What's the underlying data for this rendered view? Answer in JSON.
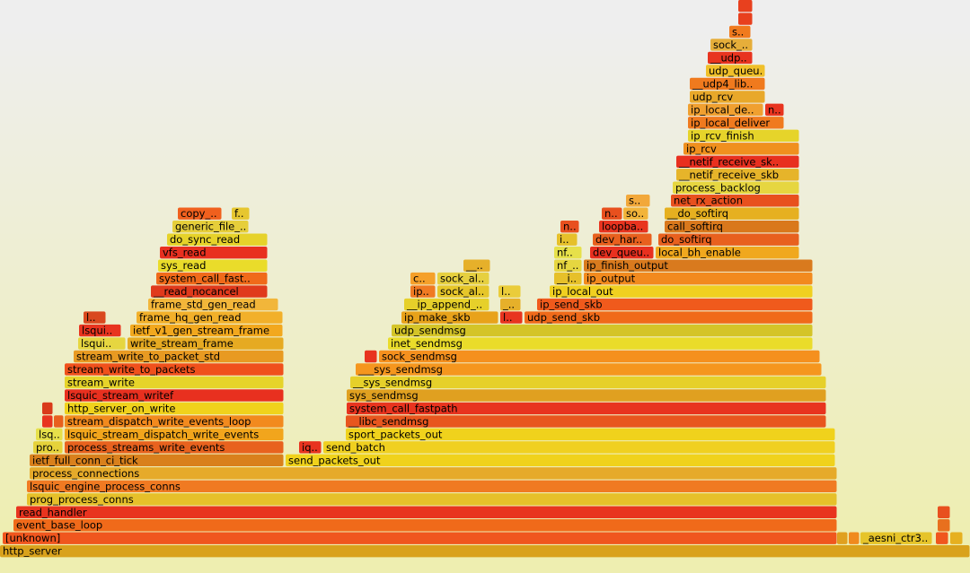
{
  "chart_data": {
    "type": "flame",
    "xlim": [
      0,
      1080
    ],
    "frames": [
      {
        "name": "http_server",
        "level": 0,
        "start": 0,
        "width": 1080,
        "color": "#d9a21c"
      },
      {
        "name": "[unknown]",
        "level": 1,
        "start": 3,
        "width": 929,
        "color": "#f0561e"
      },
      {
        "name": null,
        "level": 1,
        "start": 932,
        "width": 12,
        "color": "#e0a020"
      },
      {
        "name": null,
        "level": 1,
        "start": 945,
        "width": 12,
        "color": "#f08a1e"
      },
      {
        "name": "_aesni_ctr3..",
        "level": 1,
        "start": 958,
        "width": 80,
        "color": "#e6c42a"
      },
      {
        "name": null,
        "level": 1,
        "start": 1042,
        "width": 14,
        "color": "#f0561e"
      },
      {
        "name": null,
        "level": 1,
        "start": 1058,
        "width": 14,
        "color": "#e6b020"
      },
      {
        "name": null,
        "level": 2,
        "start": 1044,
        "width": 14,
        "color": "#e8701e"
      },
      {
        "name": null,
        "level": 3,
        "start": 1044,
        "width": 14,
        "color": "#e8501e"
      },
      {
        "name": "event_base_loop",
        "level": 2,
        "start": 15,
        "width": 917,
        "color": "#f06a1a"
      },
      {
        "name": "read_handler",
        "level": 3,
        "start": 18,
        "width": 914,
        "color": "#e8341f"
      },
      {
        "name": "prog_process_conns",
        "level": 4,
        "start": 30,
        "width": 902,
        "color": "#e6c02a"
      },
      {
        "name": "lsquic_engine_process_conns",
        "level": 5,
        "start": 30,
        "width": 902,
        "color": "#f07a22"
      },
      {
        "name": "process_connections",
        "level": 6,
        "start": 33,
        "width": 899,
        "color": "#e6aa2a"
      },
      {
        "name": "ietf_full_conn_ci_tick",
        "level": 7,
        "start": 33,
        "width": 283,
        "color": "#d9801c"
      },
      {
        "name": "send_packets_out",
        "level": 7,
        "start": 318,
        "width": 612,
        "color": "#f0d21c"
      },
      {
        "name": "pro..",
        "level": 8,
        "start": 37,
        "width": 33,
        "color": "#e6d23a"
      },
      {
        "name": "process_streams_write_events",
        "level": 8,
        "start": 72,
        "width": 244,
        "color": "#e8621e"
      },
      {
        "name": "iq..",
        "level": 8,
        "start": 333,
        "width": 25,
        "color": "#e8341f"
      },
      {
        "name": "send_batch",
        "level": 8,
        "start": 360,
        "width": 570,
        "color": "#f0d020"
      },
      {
        "name": "lsq..",
        "level": 9,
        "start": 40,
        "width": 30,
        "color": "#e6e04a"
      },
      {
        "name": "lsquic_stream_dispatch_write_events",
        "level": 9,
        "start": 72,
        "width": 244,
        "color": "#f2a51c"
      },
      {
        "name": "sport_packets_out",
        "level": 9,
        "start": 385,
        "width": 545,
        "color": "#f0d21c"
      },
      {
        "name": "stream_dispatch_write_events_loop",
        "level": 10,
        "start": 72,
        "width": 244,
        "color": "#f28a1e"
      },
      {
        "name": "__libc_sendmsg",
        "level": 10,
        "start": 385,
        "width": 535,
        "color": "#e8561e"
      },
      {
        "name": null,
        "level": 10,
        "start": 47,
        "width": 12,
        "color": "#e8341f"
      },
      {
        "name": null,
        "level": 10,
        "start": 60,
        "width": 11,
        "color": "#e8601e"
      },
      {
        "name": "http_server_on_write",
        "level": 11,
        "start": 72,
        "width": 244,
        "color": "#f0d21c"
      },
      {
        "name": "system_call_fastpath",
        "level": 11,
        "start": 386,
        "width": 534,
        "color": "#e8341f"
      },
      {
        "name": null,
        "level": 11,
        "start": 47,
        "width": 12,
        "color": "#d93a1a"
      },
      {
        "name": "lsquic_stream_writef",
        "level": 12,
        "start": 72,
        "width": 244,
        "color": "#e8301f"
      },
      {
        "name": "sys_sendmsg",
        "level": 12,
        "start": 386,
        "width": 534,
        "color": "#e0a020"
      },
      {
        "name": "stream_write",
        "level": 13,
        "start": 72,
        "width": 244,
        "color": "#e6d42a"
      },
      {
        "name": "__sys_sendmsg",
        "level": 13,
        "start": 390,
        "width": 530,
        "color": "#e6d02a"
      },
      {
        "name": "stream_write_to_packets",
        "level": 14,
        "start": 72,
        "width": 244,
        "color": "#f0501c"
      },
      {
        "name": "___sys_sendmsg",
        "level": 14,
        "start": 396,
        "width": 519,
        "color": "#f5961e"
      },
      {
        "name": "stream_write_to_packet_std",
        "level": 15,
        "start": 82,
        "width": 234,
        "color": "#e89a22"
      },
      {
        "name": "sock_sendmsg",
        "level": 15,
        "start": 422,
        "width": 491,
        "color": "#f5901e"
      },
      {
        "name": null,
        "level": 15,
        "start": 406,
        "width": 14,
        "color": "#e8341f"
      },
      {
        "name": "lsqui..",
        "level": 16,
        "start": 87,
        "width": 53,
        "color": "#e6d640"
      },
      {
        "name": "write_stream_frame",
        "level": 16,
        "start": 142,
        "width": 174,
        "color": "#e6aa22"
      },
      {
        "name": "inet_sendmsg",
        "level": 16,
        "start": 432,
        "width": 473,
        "color": "#eadc2a"
      },
      {
        "name": "lsqui..",
        "level": 17,
        "start": 88,
        "width": 47,
        "color": "#e8341f"
      },
      {
        "name": "ietf_v1_gen_stream_frame",
        "level": 17,
        "start": 145,
        "width": 170,
        "color": "#f2a81e"
      },
      {
        "name": "udp_sendmsg",
        "level": 17,
        "start": 436,
        "width": 469,
        "color": "#d4c428"
      },
      {
        "name": "l..",
        "level": 18,
        "start": 93,
        "width": 25,
        "color": "#d9481e"
      },
      {
        "name": "frame_hq_gen_read",
        "level": 18,
        "start": 152,
        "width": 163,
        "color": "#f2b02a"
      },
      {
        "name": "ip_make_skb",
        "level": 18,
        "start": 447,
        "width": 108,
        "color": "#e8a21a"
      },
      {
        "name": "l..",
        "level": 18,
        "start": 557,
        "width": 25,
        "color": "#e8341f"
      },
      {
        "name": "udp_send_skb",
        "level": 18,
        "start": 584,
        "width": 321,
        "color": "#f06a1a"
      },
      {
        "name": "frame_std_gen_read",
        "level": 19,
        "start": 165,
        "width": 145,
        "color": "#f2b63a"
      },
      {
        "name": "__ip_append_..",
        "level": 19,
        "start": 450,
        "width": 95,
        "color": "#e6d02a"
      },
      {
        "name": "_..",
        "level": 19,
        "start": 557,
        "width": 23,
        "color": "#e6b02a"
      },
      {
        "name": "ip_send_skb",
        "level": 19,
        "start": 598,
        "width": 307,
        "color": "#f05a1c"
      },
      {
        "name": "__read_nocancel",
        "level": 20,
        "start": 168,
        "width": 130,
        "color": "#e03a1c"
      },
      {
        "name": "ip..",
        "level": 20,
        "start": 457,
        "width": 28,
        "color": "#f07a22"
      },
      {
        "name": "sock_al..",
        "level": 20,
        "start": 487,
        "width": 58,
        "color": "#e6c62a"
      },
      {
        "name": "l..",
        "level": 20,
        "start": 555,
        "width": 25,
        "color": "#eacc3a"
      },
      {
        "name": "ip_local_out",
        "level": 20,
        "start": 612,
        "width": 293,
        "color": "#f0d020"
      },
      {
        "name": "system_call_fast..",
        "level": 21,
        "start": 174,
        "width": 124,
        "color": "#f06a1a"
      },
      {
        "name": "c..",
        "level": 21,
        "start": 457,
        "width": 28,
        "color": "#f5a02a"
      },
      {
        "name": "sock_al..",
        "level": 21,
        "start": 487,
        "width": 58,
        "color": "#e6d040"
      },
      {
        "name": "__i..",
        "level": 21,
        "start": 617,
        "width": 31,
        "color": "#e6c02a"
      },
      {
        "name": "ip_output",
        "level": 21,
        "start": 650,
        "width": 255,
        "color": "#f28a1e"
      },
      {
        "name": "sys_read",
        "level": 22,
        "start": 176,
        "width": 122,
        "color": "#eadc2a"
      },
      {
        "name": "__..",
        "level": 22,
        "start": 516,
        "width": 30,
        "color": "#e6b02a"
      },
      {
        "name": "nf_..",
        "level": 22,
        "start": 617,
        "width": 31,
        "color": "#e6d640"
      },
      {
        "name": "ip_finish_output",
        "level": 22,
        "start": 650,
        "width": 255,
        "color": "#d97a1e"
      },
      {
        "name": "vfs_read",
        "level": 23,
        "start": 178,
        "width": 120,
        "color": "#e8301f"
      },
      {
        "name": "nf..",
        "level": 23,
        "start": 617,
        "width": 31,
        "color": "#e6e04a"
      },
      {
        "name": "dev_queu..",
        "level": 23,
        "start": 657,
        "width": 71,
        "color": "#e8301f"
      },
      {
        "name": "local_bh_enable",
        "level": 23,
        "start": 730,
        "width": 160,
        "color": "#f0a81e"
      },
      {
        "name": "do_sync_read",
        "level": 24,
        "start": 186,
        "width": 112,
        "color": "#e6d22a"
      },
      {
        "name": "i..",
        "level": 24,
        "start": 620,
        "width": 23,
        "color": "#e6c02a"
      },
      {
        "name": "dev_har..",
        "level": 24,
        "start": 660,
        "width": 66,
        "color": "#e8601e"
      },
      {
        "name": "do_softirq",
        "level": 24,
        "start": 733,
        "width": 157,
        "color": "#e8601e"
      },
      {
        "name": "generic_file_..",
        "level": 25,
        "start": 192,
        "width": 85,
        "color": "#e6ce3a"
      },
      {
        "name": "n..",
        "level": 25,
        "start": 624,
        "width": 21,
        "color": "#e8501e"
      },
      {
        "name": "loopba..",
        "level": 25,
        "start": 667,
        "width": 55,
        "color": "#e8341f"
      },
      {
        "name": "call_softirq",
        "level": 25,
        "start": 740,
        "width": 150,
        "color": "#d9781c"
      },
      {
        "name": "copy_..",
        "level": 26,
        "start": 198,
        "width": 49,
        "color": "#f0601e"
      },
      {
        "name": "f..",
        "level": 26,
        "start": 258,
        "width": 20,
        "color": "#e6c630"
      },
      {
        "name": "n..",
        "level": 26,
        "start": 670,
        "width": 23,
        "color": "#e8501e"
      },
      {
        "name": "so..",
        "level": 26,
        "start": 694,
        "width": 28,
        "color": "#f2b43a"
      },
      {
        "name": "__do_softirq",
        "level": 26,
        "start": 740,
        "width": 150,
        "color": "#e6b020"
      },
      {
        "name": "s..",
        "level": 27,
        "start": 697,
        "width": 27,
        "color": "#f2a83a"
      },
      {
        "name": "net_rx_action",
        "level": 27,
        "start": 747,
        "width": 143,
        "color": "#e8501e"
      },
      {
        "name": "process_backlog",
        "level": 28,
        "start": 749,
        "width": 141,
        "color": "#e6d640"
      },
      {
        "name": "__netif_receive_skb",
        "level": 29,
        "start": 753,
        "width": 137,
        "color": "#e6b42a"
      },
      {
        "name": "__netif_receive_sk..",
        "level": 30,
        "start": 753,
        "width": 137,
        "color": "#e8301f"
      },
      {
        "name": "ip_rcv",
        "level": 31,
        "start": 761,
        "width": 129,
        "color": "#f0901e"
      },
      {
        "name": "ip_rcv_finish",
        "level": 32,
        "start": 766,
        "width": 124,
        "color": "#e6d42a"
      },
      {
        "name": "ip_local_deliver",
        "level": 33,
        "start": 766,
        "width": 107,
        "color": "#f07a1e"
      },
      {
        "name": "ip_local_de..",
        "level": 34,
        "start": 766,
        "width": 84,
        "color": "#f0a030"
      },
      {
        "name": "n..",
        "level": 34,
        "start": 852,
        "width": 21,
        "color": "#e8341f"
      },
      {
        "name": "udp_rcv",
        "level": 35,
        "start": 768,
        "width": 84,
        "color": "#e8a82a"
      },
      {
        "name": "__udp4_lib..",
        "level": 36,
        "start": 768,
        "width": 84,
        "color": "#f07a1e"
      },
      {
        "name": "udp_queu..",
        "level": 37,
        "start": 786,
        "width": 66,
        "color": "#f0c02a"
      },
      {
        "name": "__udp..",
        "level": 38,
        "start": 788,
        "width": 50,
        "color": "#e8341f"
      },
      {
        "name": "sock_..",
        "level": 39,
        "start": 791,
        "width": 47,
        "color": "#e6ae3a"
      },
      {
        "name": "s..",
        "level": 40,
        "start": 812,
        "width": 24,
        "color": "#f07a1e"
      },
      {
        "name": null,
        "level": 41,
        "start": 822,
        "width": 16,
        "color": "#e8401e"
      },
      {
        "name": null,
        "level": 42,
        "start": 822,
        "width": 16,
        "color": "#e8401e"
      }
    ]
  }
}
